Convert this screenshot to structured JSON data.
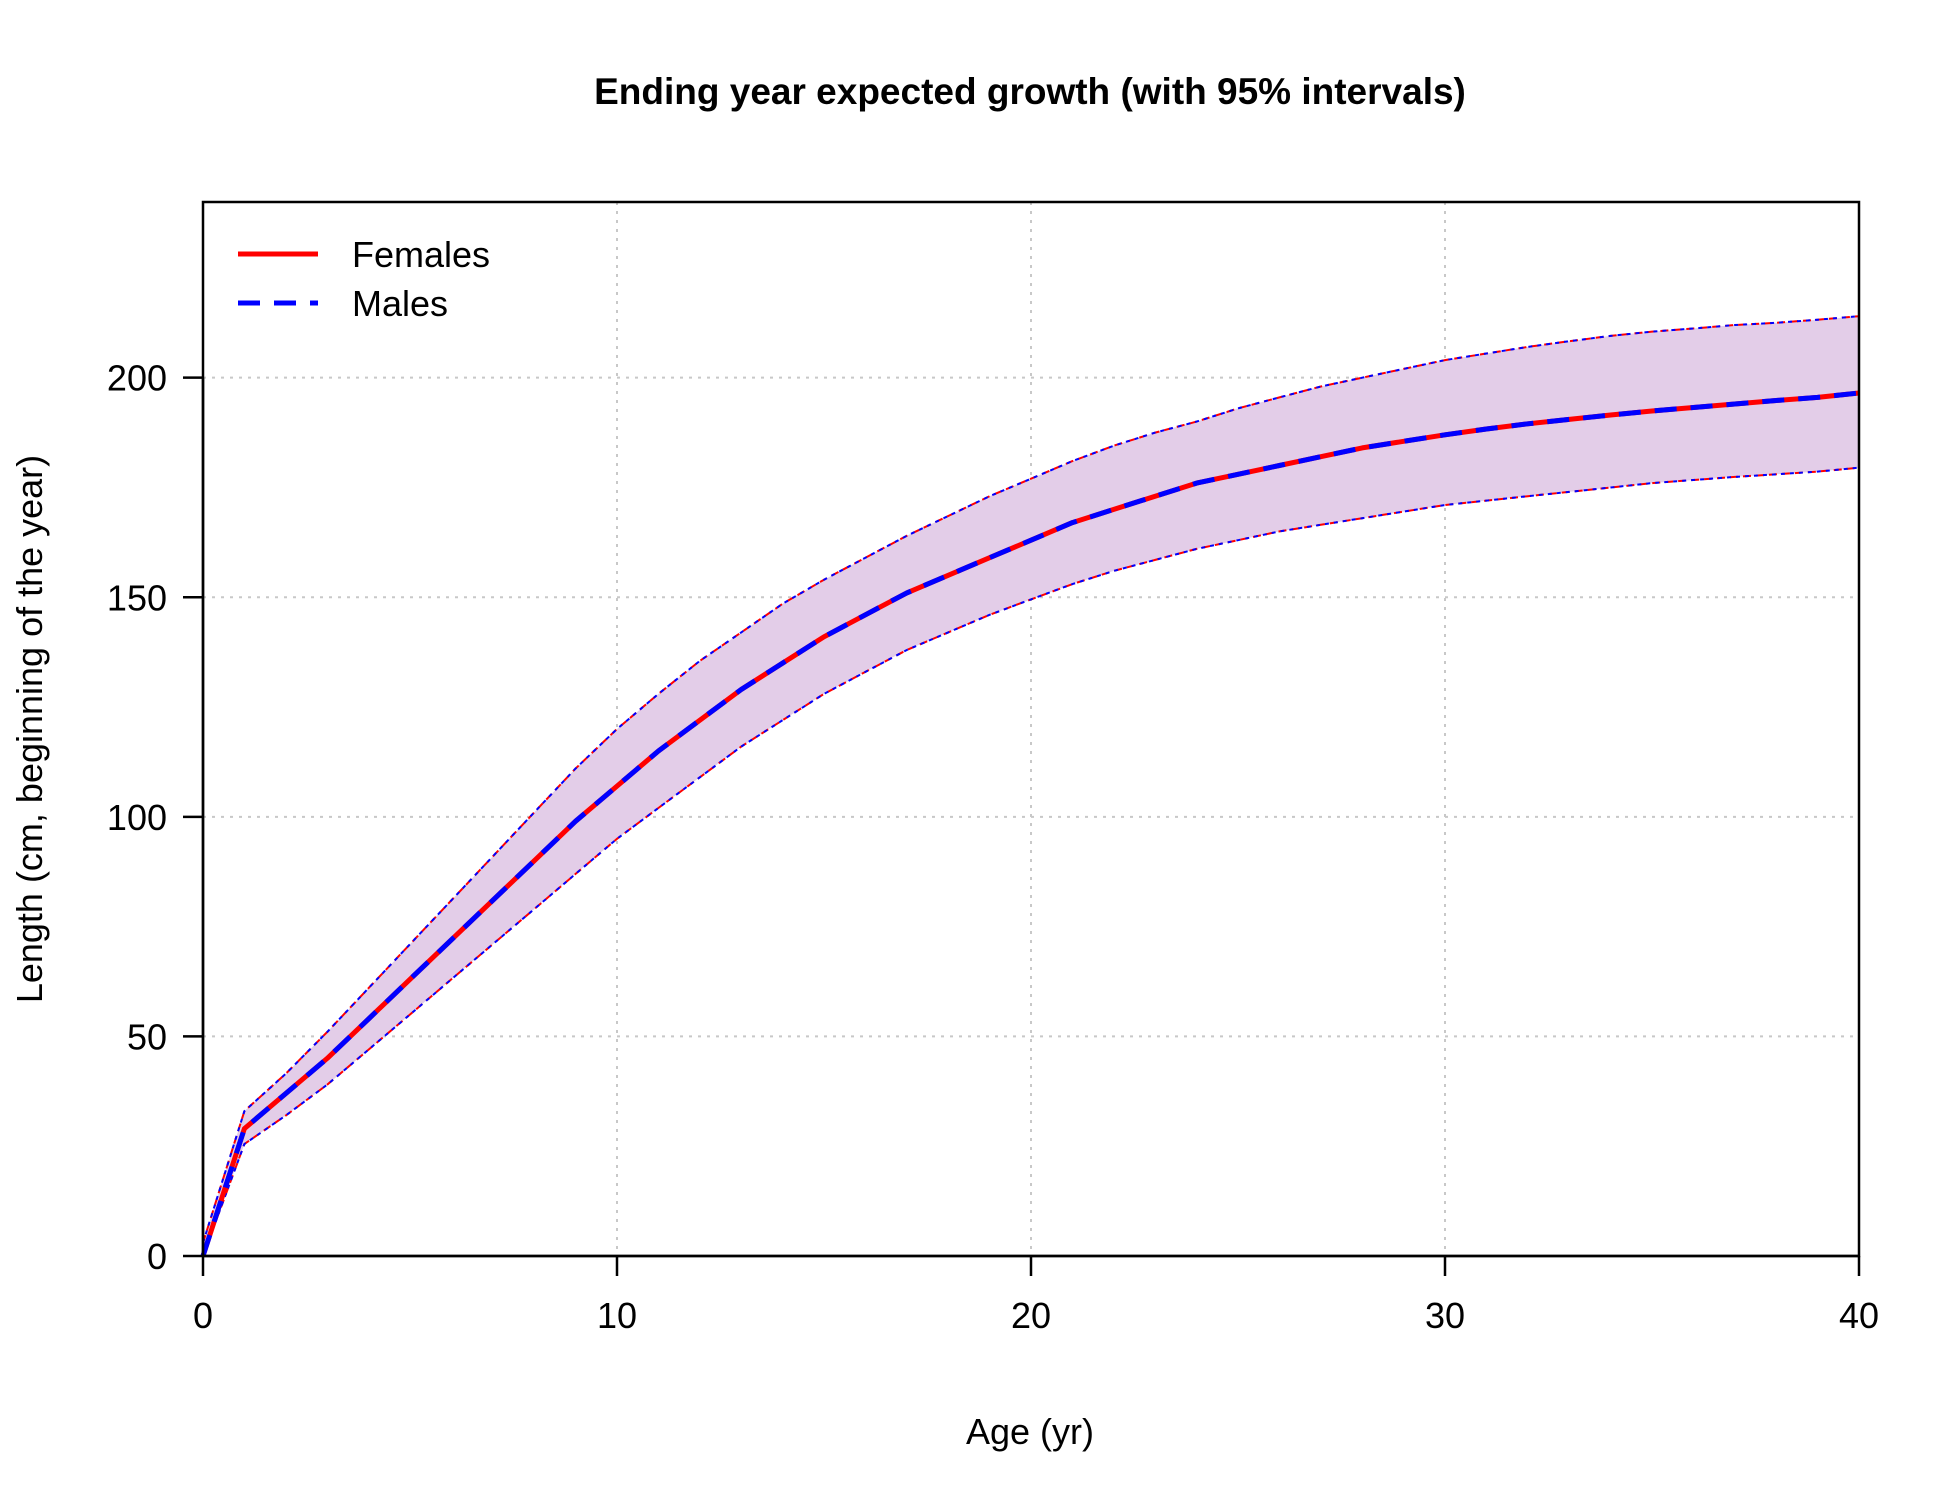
{
  "chart_data": {
    "type": "line",
    "title": "Ending year expected growth (with 95% intervals)",
    "xlabel": "Age (yr)",
    "ylabel": "Length (cm, beginning of the year)",
    "xlim": [
      0,
      40
    ],
    "ylim": [
      0,
      240
    ],
    "xticks": [
      0,
      10,
      20,
      30,
      40
    ],
    "yticks": [
      0,
      50,
      100,
      150,
      200
    ],
    "grid": true,
    "legend_position": "top-left",
    "x": [
      0,
      1,
      2,
      3,
      4,
      5,
      6,
      7,
      8,
      9,
      10,
      11,
      12,
      13,
      14,
      15,
      16,
      17,
      18,
      19,
      20,
      21,
      22,
      23,
      24,
      25,
      26,
      27,
      28,
      29,
      30,
      31,
      32,
      33,
      34,
      35,
      36,
      37,
      38,
      39,
      40
    ],
    "series": [
      {
        "name": "Females",
        "color": "#ff0000",
        "line": "solid",
        "values": [
          0,
          29,
          37,
          45,
          54,
          63,
          72,
          81,
          90,
          99,
          107,
          115,
          122,
          129,
          135,
          141,
          146,
          151,
          155,
          159,
          163,
          167,
          170,
          173,
          176,
          178,
          180,
          182,
          184,
          185.5,
          187,
          188.3,
          189.5,
          190.5,
          191.5,
          192.4,
          193.2,
          194,
          194.8,
          195.5,
          196.5
        ],
        "lower": [
          0,
          25.5,
          32,
          39,
          47,
          55,
          63,
          71,
          79,
          87,
          95,
          102,
          109,
          116,
          122,
          128,
          133,
          138,
          142,
          146,
          149.5,
          153,
          156,
          158.5,
          161,
          163,
          165,
          166.5,
          168,
          169.5,
          171,
          172,
          173,
          174,
          175,
          176,
          176.7,
          177.4,
          178,
          178.6,
          179.5
        ],
        "upper": [
          3,
          33,
          41.5,
          51,
          61,
          71,
          81,
          91,
          101,
          111,
          120,
          128,
          135.5,
          142,
          148.5,
          154,
          159,
          164,
          168.5,
          173,
          177,
          181,
          184.5,
          187.5,
          190,
          193,
          195.5,
          198,
          200,
          202,
          204,
          205.5,
          207,
          208.3,
          209.5,
          210.5,
          211.2,
          212,
          212.5,
          213.2,
          214
        ]
      },
      {
        "name": "Males",
        "color": "#0000ff",
        "line": "dashed",
        "values": [
          0,
          29,
          37,
          45,
          54,
          63,
          72,
          81,
          90,
          99,
          107,
          115,
          122,
          129,
          135,
          141,
          146,
          151,
          155,
          159,
          163,
          167,
          170,
          173,
          176,
          178,
          180,
          182,
          184,
          185.5,
          187,
          188.3,
          189.5,
          190.5,
          191.5,
          192.4,
          193.2,
          194,
          194.8,
          195.5,
          196.5
        ],
        "lower": [
          0,
          25.5,
          32,
          39,
          47,
          55,
          63,
          71,
          79,
          87,
          95,
          102,
          109,
          116,
          122,
          128,
          133,
          138,
          142,
          146,
          149.5,
          153,
          156,
          158.5,
          161,
          163,
          165,
          166.5,
          168,
          169.5,
          171,
          172,
          173,
          174,
          175,
          176,
          176.7,
          177.4,
          178,
          178.6,
          179.5
        ],
        "upper": [
          3,
          33,
          41.5,
          51,
          61,
          71,
          81,
          91,
          101,
          111,
          120,
          128,
          135.5,
          142,
          148.5,
          154,
          159,
          164,
          168.5,
          173,
          177,
          181,
          184.5,
          187.5,
          190,
          193,
          195.5,
          198,
          200,
          202,
          204,
          205.5,
          207,
          208.3,
          209.5,
          210.5,
          211.2,
          212,
          212.5,
          213.2,
          214
        ]
      }
    ],
    "interval_fill_color": "#e3cde8"
  }
}
